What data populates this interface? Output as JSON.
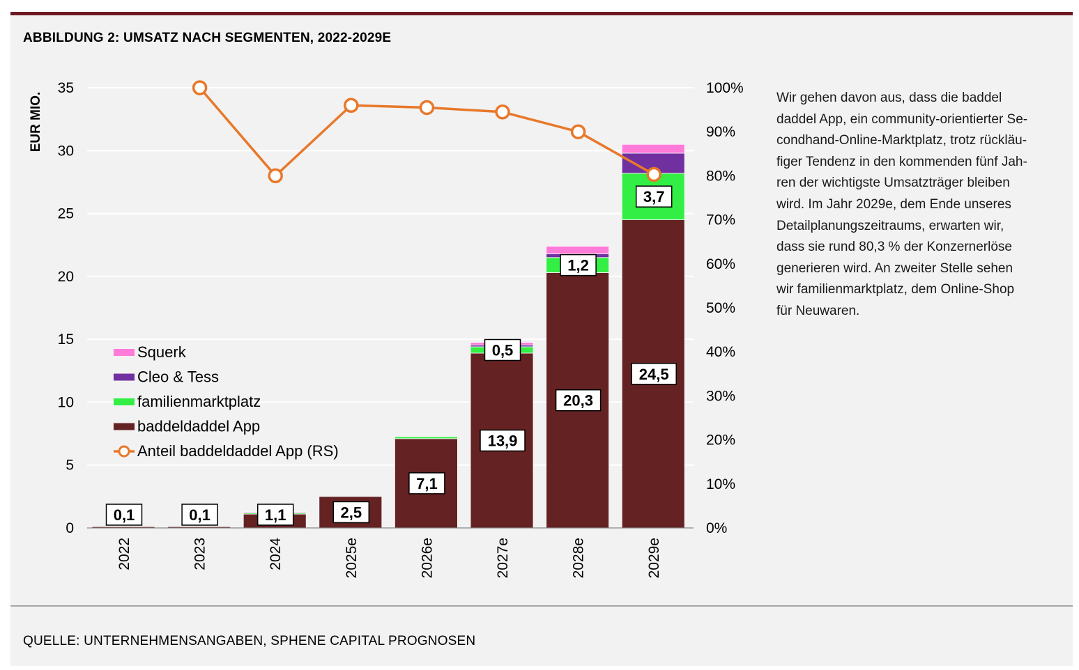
{
  "figure": {
    "title": "ABBILDUNG 2: UMSATZ NACH SEGMENTEN, 2022-2029E",
    "source": "QUELLE: UNTERNEHMENSANGABEN, SPHENE CAPITAL PROGNOSEN",
    "side_text_lines": [
      "Wir gehen davon aus, dass die baddel",
      "daddel App, ein community-orientierter Se-",
      "condhand-Online-Marktplatz, trotz rückläu-",
      "figer Tendenz in den kommenden fünf Jah-",
      "ren der wichtigste Umsatzträger bleiben",
      "wird. Im Jahr 2029e, dem Ende unseres",
      "Detailplanungszeitraums, erwarten wir,",
      "dass sie rund 80,3 % der Konzernerlöse",
      "generieren wird. An zweiter Stelle sehen",
      "wir familienmarktplatz, dem Online-Shop",
      "für Neuwaren."
    ]
  },
  "chart_data": {
    "type": "bar",
    "stacked": true,
    "categories": [
      "2022",
      "2023",
      "2024",
      "2025e",
      "2026e",
      "2027e",
      "2028e",
      "2029e"
    ],
    "ylabel": "EUR MIO.",
    "ylim": [
      0,
      35
    ],
    "yticks": [
      "0",
      "5",
      "10",
      "15",
      "20",
      "25",
      "30",
      "35"
    ],
    "y2lim": [
      0,
      100
    ],
    "y2ticks": [
      "0%",
      "10%",
      "20%",
      "30%",
      "40%",
      "50%",
      "60%",
      "70%",
      "80%",
      "90%",
      "100%"
    ],
    "grid": true,
    "legend_position": "left-middle",
    "series": [
      {
        "name": "baddeldaddel App",
        "color": "#642223",
        "values": [
          0.1,
          0.1,
          1.1,
          2.5,
          7.1,
          13.9,
          20.3,
          24.5
        ]
      },
      {
        "name": "familienmarktplatz",
        "color": "#33ee44",
        "values": [
          0.0,
          0.0,
          0.1,
          0.0,
          0.15,
          0.5,
          1.2,
          3.7
        ]
      },
      {
        "name": "Cleo & Tess",
        "color": "#7030a0",
        "values": [
          0.0,
          0.0,
          0.05,
          0.0,
          0.0,
          0.15,
          0.3,
          1.6
        ]
      },
      {
        "name": "Squerk",
        "color": "#ff7ad9",
        "values": [
          0.0,
          0.0,
          0.05,
          0.0,
          0.0,
          0.2,
          0.6,
          0.7
        ]
      }
    ],
    "line_series": {
      "name": "Anteil baddeldaddel App (RS)",
      "color": "#e8782a",
      "axis": "right",
      "values": [
        null,
        100,
        80,
        96,
        95.5,
        94.5,
        90,
        80.3
      ]
    },
    "data_labels": [
      {
        "category": "2022",
        "series": "baddeldaddel App",
        "text": "0,1"
      },
      {
        "category": "2023",
        "series": "baddeldaddel App",
        "text": "0,1"
      },
      {
        "category": "2024",
        "series": "baddeldaddel App",
        "text": "1,1"
      },
      {
        "category": "2025e",
        "series": "baddeldaddel App",
        "text": "2,5"
      },
      {
        "category": "2026e",
        "series": "baddeldaddel App",
        "text": "7,1"
      },
      {
        "category": "2027e",
        "series": "baddeldaddel App",
        "text": "13,9"
      },
      {
        "category": "2027e",
        "series": "familienmarktplatz",
        "text": "0,5"
      },
      {
        "category": "2028e",
        "series": "baddeldaddel App",
        "text": "20,3"
      },
      {
        "category": "2028e",
        "series": "familienmarktplatz",
        "text": "1,2"
      },
      {
        "category": "2029e",
        "series": "baddeldaddel App",
        "text": "24,5"
      },
      {
        "category": "2029e",
        "series": "familienmarktplatz",
        "text": "3,7"
      }
    ],
    "legend_items": [
      "Squerk",
      "Cleo & Tess",
      "familienmarktplatz",
      "baddeldaddel App",
      "Anteil baddeldaddel App (RS)"
    ]
  }
}
